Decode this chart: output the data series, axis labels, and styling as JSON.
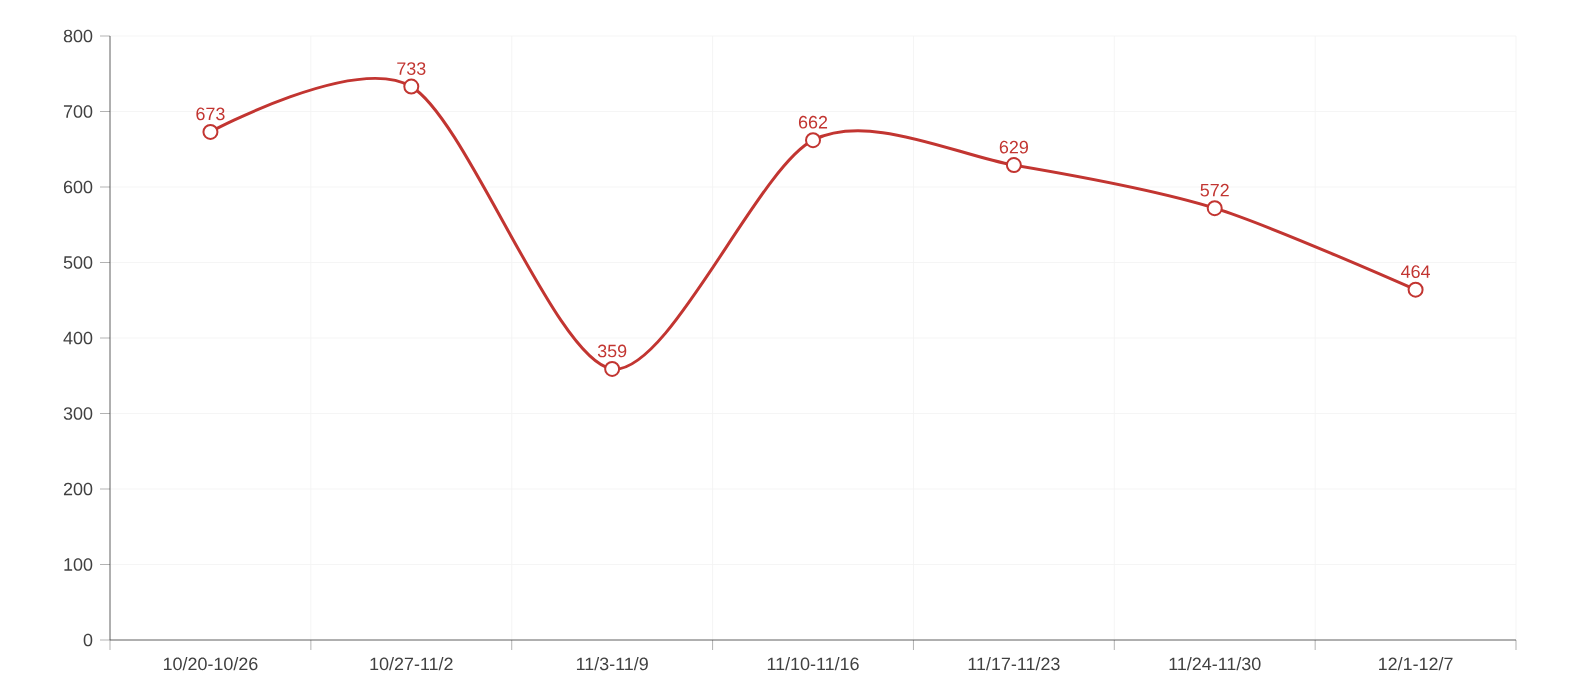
{
  "chart_data": {
    "type": "line",
    "categories": [
      "10/20-10/26",
      "10/27-11/2",
      "11/3-11/9",
      "11/10-11/16",
      "11/17-11/23",
      "11/24-11/30",
      "12/1-12/7"
    ],
    "series": [
      {
        "color": "#c23531",
        "values": [
          673,
          733,
          359,
          662,
          629,
          572,
          464
        ]
      }
    ],
    "ylim": [
      0,
      800
    ],
    "yticks": [
      0,
      100,
      200,
      300,
      400,
      500,
      600,
      700,
      800
    ],
    "grid": true,
    "marker": "circle",
    "line_style": "solid",
    "data_labels": true
  }
}
